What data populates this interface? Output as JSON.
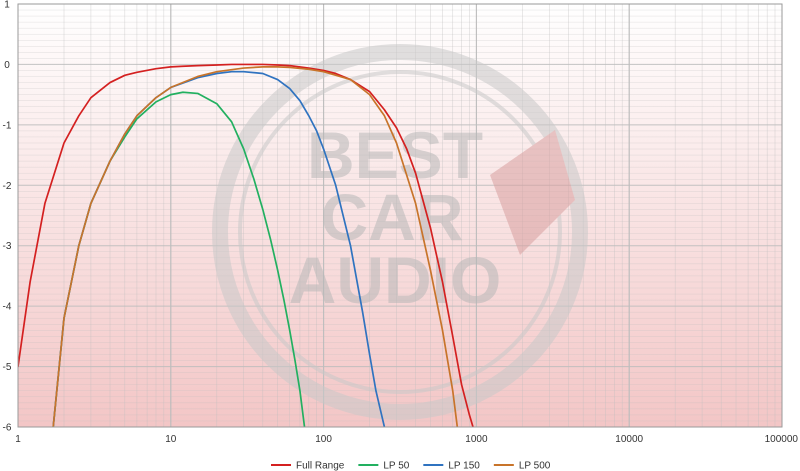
{
  "chart_data": {
    "type": "line",
    "title": "",
    "xlabel": "",
    "ylabel": "",
    "x_scale": "log",
    "xlim": [
      1,
      100000
    ],
    "ylim": [
      -6,
      1
    ],
    "grid": true,
    "legend_position": "bottom",
    "x_tick_labels": [
      "1",
      "10",
      "100",
      "1000",
      "10000",
      "100000"
    ],
    "y_tick_labels": [
      "1",
      "0",
      "-1",
      "-2",
      "-3",
      "-4",
      "-5",
      "-6"
    ],
    "watermark": {
      "lines": [
        "BEST",
        "CAR",
        "AUDIO"
      ],
      "colors": {
        "ring": "#c9c9c9",
        "text": "#b8b8b8",
        "accent": "#d9a0a0"
      }
    },
    "colors": {
      "background_top": "#ffffff",
      "background_bottom": "#f3c6c6",
      "grid": "#bdbdbd"
    },
    "series": [
      {
        "name": "Full Range",
        "color": "#d42020",
        "x": [
          1,
          1.2,
          1.5,
          2,
          2.5,
          3,
          4,
          5,
          6,
          8,
          10,
          12,
          15,
          20,
          25,
          30,
          40,
          50,
          60,
          80,
          100,
          120,
          150,
          200,
          250,
          300,
          350,
          400,
          500,
          600,
          700,
          800,
          900,
          950
        ],
        "y": [
          -5.0,
          -3.6,
          -2.3,
          -1.3,
          -0.85,
          -0.55,
          -0.3,
          -0.18,
          -0.13,
          -0.07,
          -0.04,
          -0.03,
          -0.02,
          -0.01,
          0.0,
          0.0,
          0.0,
          -0.01,
          -0.02,
          -0.06,
          -0.1,
          -0.15,
          -0.25,
          -0.45,
          -0.75,
          -1.05,
          -1.4,
          -1.8,
          -2.7,
          -3.6,
          -4.5,
          -5.3,
          -5.8,
          -6.0
        ]
      },
      {
        "name": "LP 50",
        "color": "#22b060",
        "x": [
          1.7,
          2,
          2.5,
          3,
          4,
          5,
          6,
          8,
          10,
          12,
          15,
          20,
          25,
          30,
          35,
          40,
          45,
          50,
          55,
          60,
          65,
          70,
          75
        ],
        "y": [
          -6.0,
          -4.2,
          -3.0,
          -2.3,
          -1.6,
          -1.2,
          -0.9,
          -0.62,
          -0.5,
          -0.46,
          -0.48,
          -0.65,
          -0.95,
          -1.4,
          -1.9,
          -2.4,
          -2.9,
          -3.4,
          -3.9,
          -4.4,
          -4.9,
          -5.4,
          -6.0
        ]
      },
      {
        "name": "LP 150",
        "color": "#2f73c0",
        "x": [
          1.7,
          2,
          2.5,
          3,
          4,
          5,
          6,
          8,
          10,
          15,
          20,
          25,
          30,
          40,
          50,
          60,
          70,
          80,
          90,
          100,
          120,
          150,
          180,
          200,
          220,
          250
        ],
        "y": [
          -6.0,
          -4.2,
          -3.0,
          -2.3,
          -1.6,
          -1.15,
          -0.85,
          -0.55,
          -0.38,
          -0.22,
          -0.15,
          -0.12,
          -0.12,
          -0.15,
          -0.25,
          -0.4,
          -0.6,
          -0.85,
          -1.1,
          -1.4,
          -2.0,
          -3.0,
          -4.1,
          -4.8,
          -5.4,
          -6.0
        ]
      },
      {
        "name": "LP 500",
        "color": "#c8742a",
        "x": [
          1.7,
          2,
          2.5,
          3,
          4,
          5,
          6,
          8,
          10,
          15,
          20,
          30,
          40,
          50,
          60,
          80,
          100,
          150,
          200,
          250,
          300,
          400,
          500,
          600,
          700,
          750
        ],
        "y": [
          -6.0,
          -4.2,
          -3.0,
          -2.3,
          -1.6,
          -1.15,
          -0.85,
          -0.55,
          -0.38,
          -0.2,
          -0.12,
          -0.06,
          -0.04,
          -0.04,
          -0.05,
          -0.08,
          -0.12,
          -0.25,
          -0.5,
          -0.85,
          -1.3,
          -2.3,
          -3.4,
          -4.4,
          -5.4,
          -6.0
        ]
      }
    ]
  }
}
